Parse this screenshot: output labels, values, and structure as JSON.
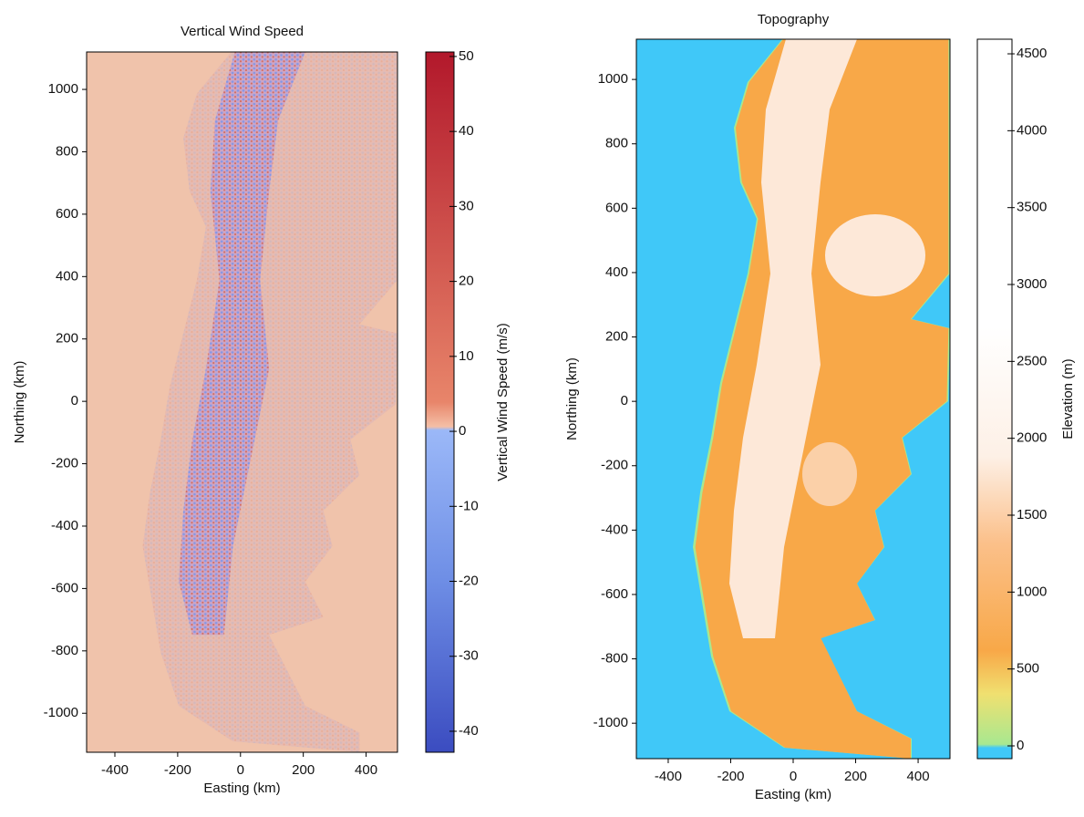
{
  "chart_data": [
    {
      "type": "map",
      "title": "Vertical Wind Speed",
      "x_label": "Easting (km)",
      "y_label": "Northing (km)",
      "xlim": [
        -490,
        500
      ],
      "ylim": [
        -1125,
        1120
      ],
      "xticks": [
        -400,
        -200,
        0,
        200,
        400
      ],
      "yticks": [
        -1000,
        -800,
        -600,
        -400,
        -200,
        0,
        200,
        400,
        600,
        800,
        1000
      ],
      "colorbar": {
        "label": "Vertical Wind Speed (m/s)",
        "lim": [
          -42.8,
          50.6
        ],
        "ticks": [
          -40,
          -30,
          -20,
          -10,
          0,
          10,
          20,
          30,
          40,
          50
        ]
      }
    },
    {
      "type": "map",
      "title": "Topography",
      "x_label": "Easting (km)",
      "y_label": "Northing (km)",
      "xlim": [
        -502,
        502
      ],
      "ylim": [
        -1110,
        1125
      ],
      "xticks": [
        -400,
        -200,
        0,
        200,
        400
      ],
      "yticks": [
        -1000,
        -800,
        -600,
        -400,
        -200,
        0,
        200,
        400,
        600,
        800,
        1000
      ],
      "colorbar": {
        "label": "Elevation (m)",
        "lim": [
          -83,
          4595
        ],
        "ticks": [
          0,
          500,
          1000,
          1500,
          2000,
          2500,
          3000,
          3500,
          4000,
          4500
        ]
      }
    }
  ]
}
